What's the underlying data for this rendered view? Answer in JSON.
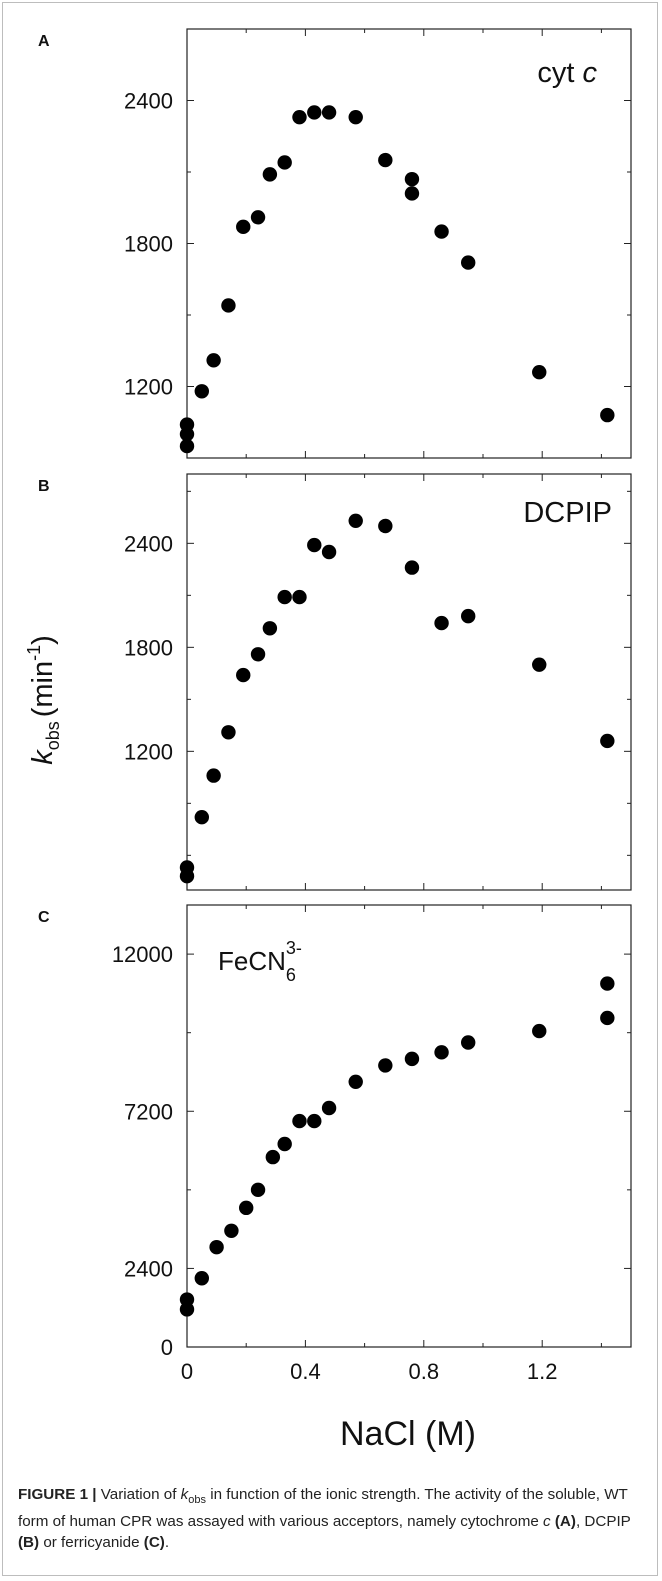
{
  "figure": {
    "caption": {
      "label": "FIGURE 1 |",
      "pre_k": "Variation of ",
      "k": "k",
      "k_sub": "obs",
      "post_k": " in function of the ionic strength. The activity of the soluble, WT form of human CPR was assayed with various acceptors, namely cytochrome ",
      "c": "c",
      "sp1": " ",
      "A": "(A)",
      "mid1": ", DCPIP ",
      "B": "(B)",
      "mid2": " or ferricyanide ",
      "C": "(C)",
      "end": "."
    },
    "shared_ylabel": {
      "k": "k",
      "sub": "obs",
      "rest": "(min",
      "sup": "-1",
      "close": ")"
    },
    "shared_xlabel": "NaCl (M)"
  },
  "chart_data": [
    {
      "type": "scatter",
      "panel": "A",
      "annotation": {
        "text": "cyt ",
        "italic": "c"
      },
      "xlim": [
        0,
        1.5
      ],
      "ylim": [
        900,
        2700
      ],
      "yticks": [
        1200,
        1800,
        2400
      ],
      "x": [
        0,
        0,
        0,
        0.05,
        0.09,
        0.14,
        0.19,
        0.24,
        0.28,
        0.33,
        0.38,
        0.43,
        0.48,
        0.57,
        0.67,
        0.76,
        0.76,
        0.86,
        0.95,
        1.19,
        1.42
      ],
      "y": [
        1040,
        1000,
        950,
        1180,
        1310,
        1540,
        1870,
        1910,
        2090,
        2140,
        2330,
        2350,
        2350,
        2330,
        2150,
        2070,
        2010,
        1850,
        1720,
        1260,
        1080
      ]
    },
    {
      "type": "scatter",
      "panel": "B",
      "annotation": {
        "text": "DCPIP"
      },
      "xlim": [
        0,
        1.5
      ],
      "ylim": [
        400,
        2800
      ],
      "yticks": [
        1200,
        1800,
        2400
      ],
      "x": [
        0,
        0,
        0.05,
        0.09,
        0.14,
        0.19,
        0.24,
        0.28,
        0.33,
        0.38,
        0.43,
        0.48,
        0.57,
        0.67,
        0.76,
        0.86,
        0.95,
        1.19,
        1.42
      ],
      "y": [
        530,
        480,
        820,
        1060,
        1310,
        1640,
        1760,
        1910,
        2090,
        2090,
        2390,
        2350,
        2530,
        2500,
        2260,
        1940,
        1980,
        1700,
        1260
      ]
    },
    {
      "type": "scatter",
      "panel": "C",
      "annotation": {
        "text": "FeCN",
        "sub": "6",
        "sup": "3-"
      },
      "xlim": [
        0,
        1.5
      ],
      "ylim": [
        0,
        13500
      ],
      "yticks": [
        0,
        2400,
        7200,
        12000
      ],
      "xticks": [
        0,
        0.4,
        0.8,
        1.2
      ],
      "xtick_labels": [
        "0",
        "0.4",
        "0.8",
        "1.2"
      ],
      "x": [
        0,
        0,
        0.05,
        0.1,
        0.15,
        0.2,
        0.24,
        0.29,
        0.33,
        0.38,
        0.43,
        0.48,
        0.57,
        0.67,
        0.76,
        0.86,
        0.95,
        1.19,
        1.42,
        1.42
      ],
      "y": [
        1450,
        1150,
        2100,
        3050,
        3550,
        4250,
        4800,
        5800,
        6200,
        6900,
        6900,
        7300,
        8100,
        8600,
        8800,
        9000,
        9300,
        9650,
        10050,
        11100
      ]
    }
  ]
}
